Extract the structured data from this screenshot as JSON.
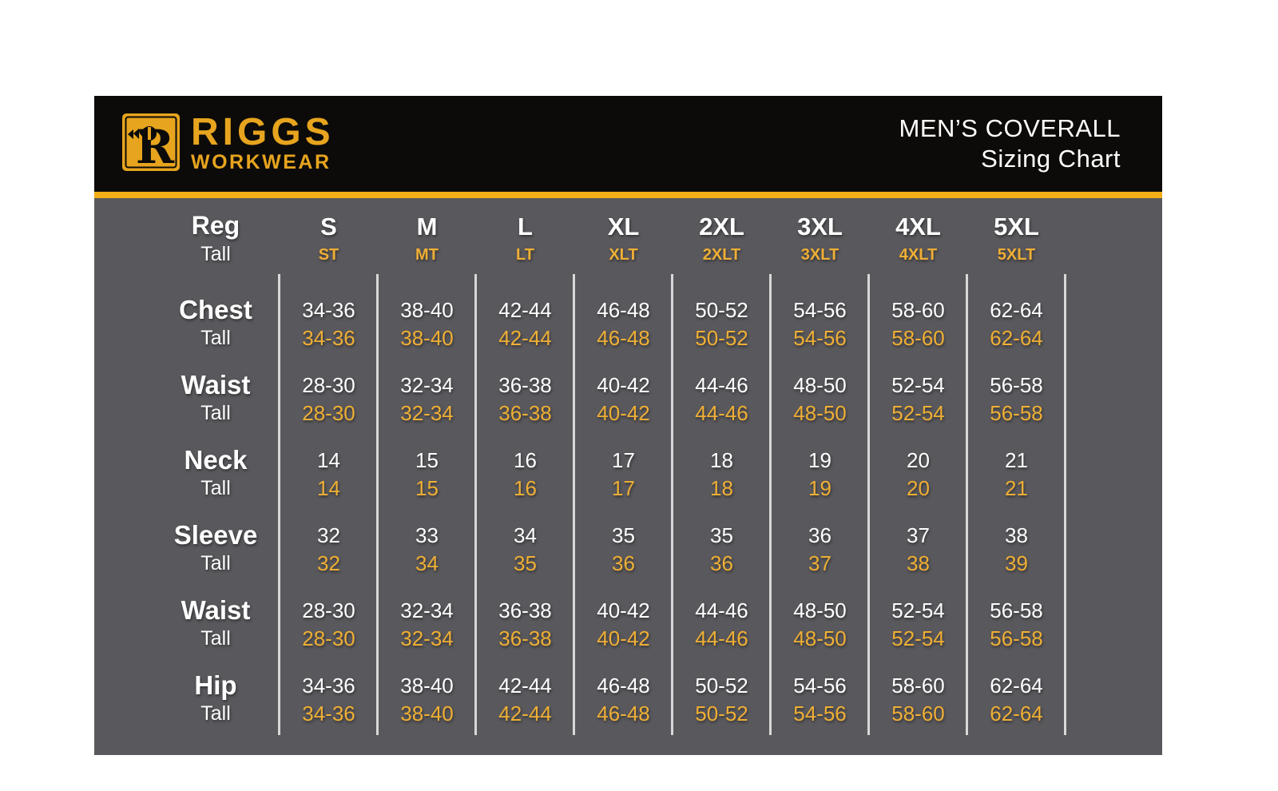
{
  "header": {
    "logo": {
      "letter": "R",
      "brand": "RIGGS",
      "sub": "WORKWEAR"
    },
    "title_line1": "MEN’S COVERALL",
    "title_line2": "Sizing Chart"
  },
  "colors": {
    "gold_logo": "#E7A41E",
    "gold_stripe": "#F2AF17",
    "gold_tall_text": "#EFAF35",
    "panel_gray": "#59585C",
    "header_black": "#0C0B09",
    "divider_gray": "#D8D8D8",
    "text_white": "#FFFFFF"
  },
  "chart_data": {
    "type": "table",
    "title": "MEN’S COVERALL Sizing Chart",
    "corner": {
      "reg": "Reg",
      "tall": "Tall"
    },
    "tall_row_label": "Tall",
    "sizes": [
      {
        "reg": "S",
        "tall": "ST"
      },
      {
        "reg": "M",
        "tall": "MT"
      },
      {
        "reg": "L",
        "tall": "LT"
      },
      {
        "reg": "XL",
        "tall": "XLT"
      },
      {
        "reg": "2XL",
        "tall": "2XLT"
      },
      {
        "reg": "3XL",
        "tall": "3XLT"
      },
      {
        "reg": "4XL",
        "tall": "4XLT"
      },
      {
        "reg": "5XL",
        "tall": "5XLT"
      }
    ],
    "rows": [
      {
        "label": "Chest",
        "reg": [
          "34-36",
          "38-40",
          "42-44",
          "46-48",
          "50-52",
          "54-56",
          "58-60",
          "62-64"
        ],
        "tall": [
          "34-36",
          "38-40",
          "42-44",
          "46-48",
          "50-52",
          "54-56",
          "58-60",
          "62-64"
        ]
      },
      {
        "label": "Waist",
        "reg": [
          "28-30",
          "32-34",
          "36-38",
          "40-42",
          "44-46",
          "48-50",
          "52-54",
          "56-58"
        ],
        "tall": [
          "28-30",
          "32-34",
          "36-38",
          "40-42",
          "44-46",
          "48-50",
          "52-54",
          "56-58"
        ]
      },
      {
        "label": "Neck",
        "reg": [
          "14",
          "15",
          "16",
          "17",
          "18",
          "19",
          "20",
          "21"
        ],
        "tall": [
          "14",
          "15",
          "16",
          "17",
          "18",
          "19",
          "20",
          "21"
        ]
      },
      {
        "label": "Sleeve",
        "reg": [
          "32",
          "33",
          "34",
          "35",
          "35",
          "36",
          "37",
          "38"
        ],
        "tall": [
          "32",
          "34",
          "35",
          "36",
          "36",
          "37",
          "38",
          "39"
        ]
      },
      {
        "label": "Waist",
        "reg": [
          "28-30",
          "32-34",
          "36-38",
          "40-42",
          "44-46",
          "48-50",
          "52-54",
          "56-58"
        ],
        "tall": [
          "28-30",
          "32-34",
          "36-38",
          "40-42",
          "44-46",
          "48-50",
          "52-54",
          "56-58"
        ]
      },
      {
        "label": "Hip",
        "reg": [
          "34-36",
          "38-40",
          "42-44",
          "46-48",
          "50-52",
          "54-56",
          "58-60",
          "62-64"
        ],
        "tall": [
          "34-36",
          "38-40",
          "42-44",
          "46-48",
          "50-52",
          "54-56",
          "58-60",
          "62-64"
        ]
      }
    ]
  }
}
